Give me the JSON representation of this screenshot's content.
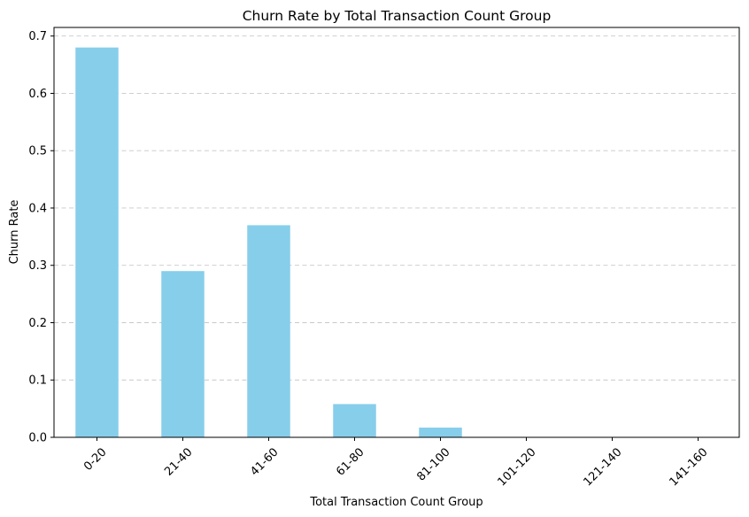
{
  "chart_data": {
    "type": "bar",
    "title": "Churn Rate by Total Transaction Count Group",
    "xlabel": "Total Transaction Count Group",
    "ylabel": "Churn Rate",
    "categories": [
      "0-20",
      "21-40",
      "41-60",
      "61-80",
      "81-100",
      "101-120",
      "121-140",
      "141-160"
    ],
    "values": [
      0.68,
      0.29,
      0.37,
      0.058,
      0.017,
      0,
      0,
      0
    ],
    "ylim": [
      0,
      0.715
    ],
    "yticks": [
      0.0,
      0.1,
      0.2,
      0.3,
      0.4,
      0.5,
      0.6,
      0.7
    ],
    "ytick_labels": [
      "0.0",
      "0.1",
      "0.2",
      "0.3",
      "0.4",
      "0.5",
      "0.6",
      "0.7"
    ],
    "grid": "y-axis dashed",
    "bar_color": "#87ceeb",
    "x_tick_rotation": "45 degrees"
  }
}
